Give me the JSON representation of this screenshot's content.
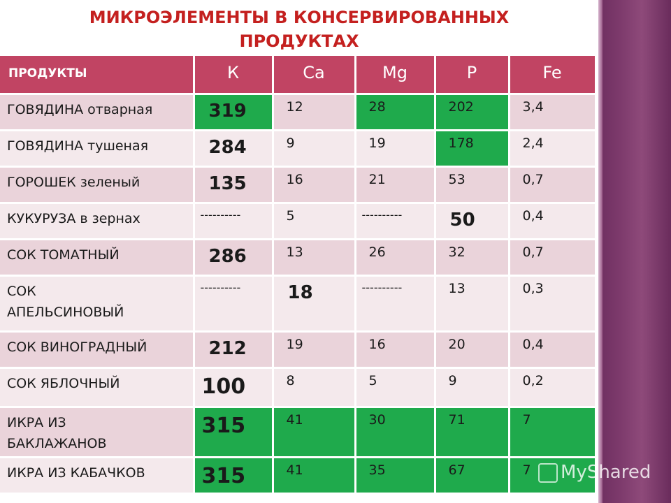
{
  "title_line1": "МИКРОЭЛЕМЕНТЫ В КОНСЕРВИРОВАННЫХ",
  "title_line2": "ПРОДУКТАХ",
  "table": {
    "headers": [
      "ПРОДУКТЫ",
      "К",
      "Са",
      "Mg",
      "Р",
      "Fe"
    ],
    "rows": [
      {
        "name": "ГОВЯДИНА отварная",
        "k": "319",
        "ca": "12",
        "mg": "28",
        "p": "202",
        "fe": "3,4"
      },
      {
        "name": "ГОВЯДИНА тушеная",
        "k": "284",
        "ca": "9",
        "mg": "19",
        "p": "178",
        "fe": "2,4"
      },
      {
        "name": "ГОРОШЕК зеленый",
        "k": "135",
        "ca": "16",
        "mg": "21",
        "p": "53",
        "fe": "0,7"
      },
      {
        "name": "КУКУРУЗА в зернах",
        "k": "----------",
        "ca": "5",
        "mg": "----------",
        "p": "50",
        "fe": "0,4"
      },
      {
        "name": "СОК ТОМАТНЫЙ",
        "k": "286",
        "ca": "13",
        "mg": "26",
        "p": "32",
        "fe": "0,7"
      },
      {
        "name_line1": "СОК",
        "name_line2": "АПЕЛЬСИНОВЫЙ",
        "k": "----------",
        "ca": "18",
        "mg": "----------",
        "p": "13",
        "fe": "0,3"
      },
      {
        "name": "СОК ВИНОГРАДНЫЙ",
        "k": "212",
        "ca": "19",
        "mg": "16",
        "p": "20",
        "fe": "0,4"
      },
      {
        "name": "СОК ЯБЛОЧНЫЙ",
        "k": "100",
        "ca": "8",
        "mg": "5",
        "p": "9",
        "fe": "0,2"
      },
      {
        "name_line1": "ИКРА ИЗ",
        "name_line2": "БАКЛАЖАНОВ",
        "k": "315",
        "ca": "41",
        "mg": "30",
        "p": "71",
        "fe": "7"
      },
      {
        "name": "ИКРА ИЗ КАБАЧКОВ",
        "k": "315",
        "ca": "41",
        "mg": "35",
        "p": "67",
        "fe": "7"
      }
    ]
  },
  "colors": {
    "header_bg": "#c14463",
    "highlight": "#1faa4c",
    "title": "#c4201f"
  },
  "watermark": {
    "text": "MyShared",
    "icon": "myshared-logo-icon"
  }
}
